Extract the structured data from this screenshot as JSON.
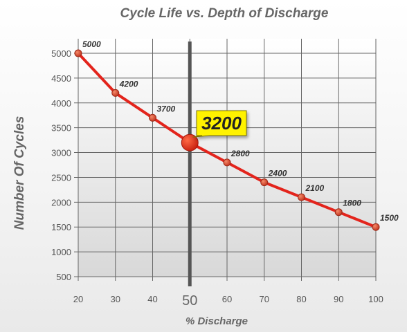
{
  "chart_data": {
    "type": "line",
    "title": "Cycle Life vs. Depth of Discharge",
    "xlabel": "% Discharge",
    "ylabel": "Number Of Cycles",
    "x": [
      20,
      30,
      40,
      50,
      60,
      70,
      80,
      90,
      100
    ],
    "y": [
      5000,
      4200,
      3700,
      3200,
      2800,
      2400,
      2100,
      1800,
      1500
    ],
    "point_labels": [
      "5000",
      "4200",
      "3700",
      "3200",
      "2800",
      "2400",
      "2100",
      "1800",
      "1500"
    ],
    "xticks": [
      "20",
      "30",
      "40",
      "50",
      "60",
      "70",
      "80",
      "90",
      "100"
    ],
    "yticks": [
      "500",
      "1000",
      "1500",
      "2000",
      "2500",
      "3000",
      "3500",
      "4000",
      "4500",
      "5000"
    ],
    "xlim": [
      20,
      100
    ],
    "ylim": [
      500,
      5000
    ],
    "grid": true,
    "highlight": {
      "x": 50,
      "label": "3200"
    },
    "colors": {
      "line": "#e3241c",
      "marker": "#d7412c",
      "highlight_line": "#555555",
      "callout_fill": "#fff200",
      "grid": "#666666"
    }
  }
}
